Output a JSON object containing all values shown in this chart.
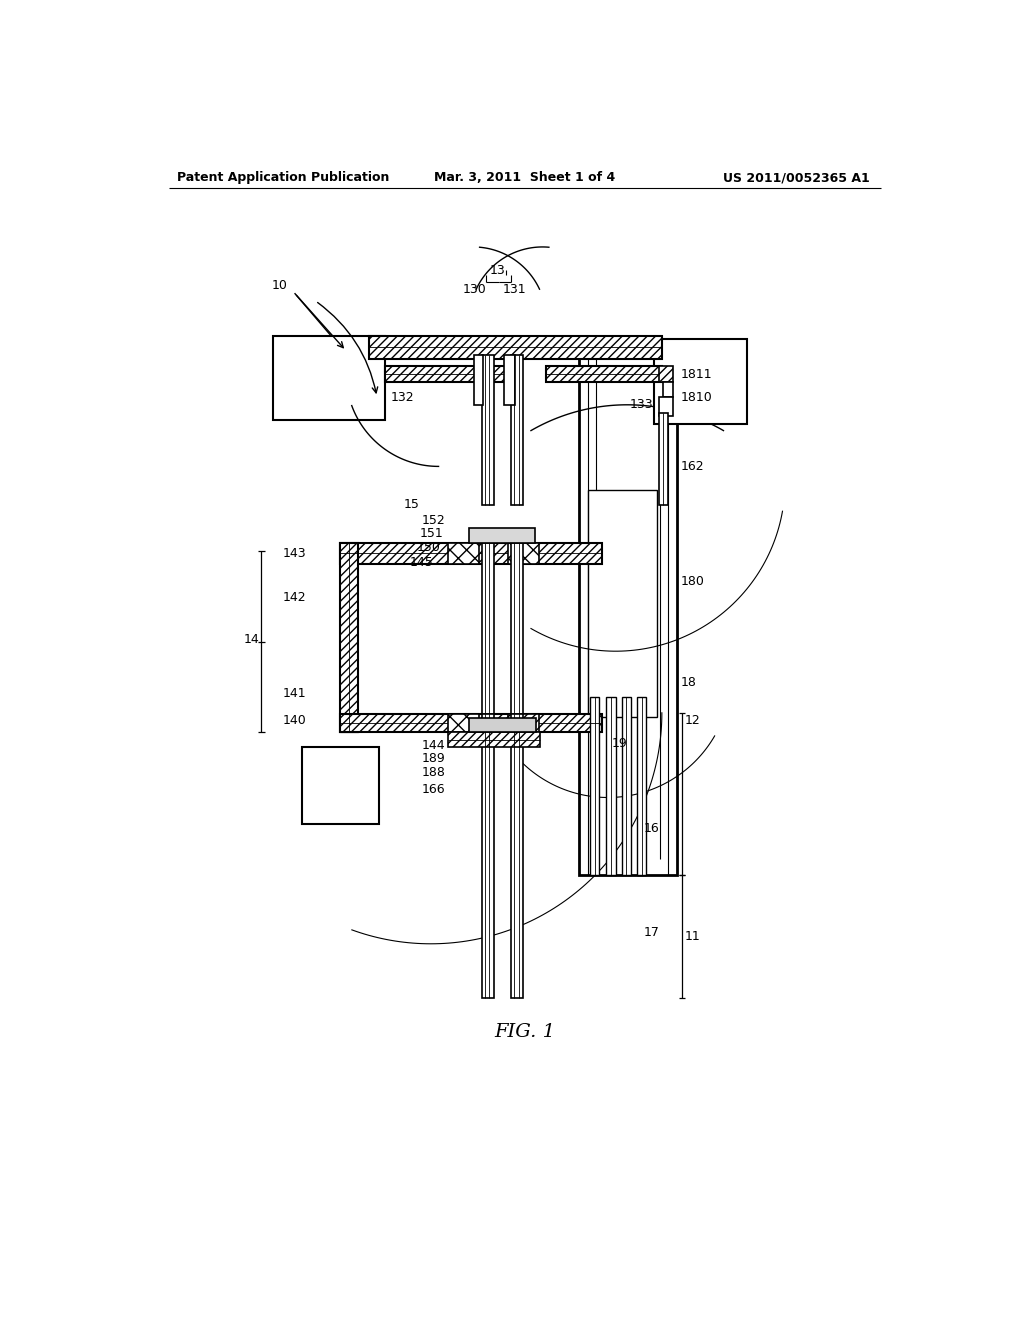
{
  "header_left": "Patent Application Publication",
  "header_center": "Mar. 3, 2011  Sheet 1 of 4",
  "header_right": "US 2011/0052365 A1",
  "figure_label": "FIG. 1",
  "bg_color": "#ffffff"
}
